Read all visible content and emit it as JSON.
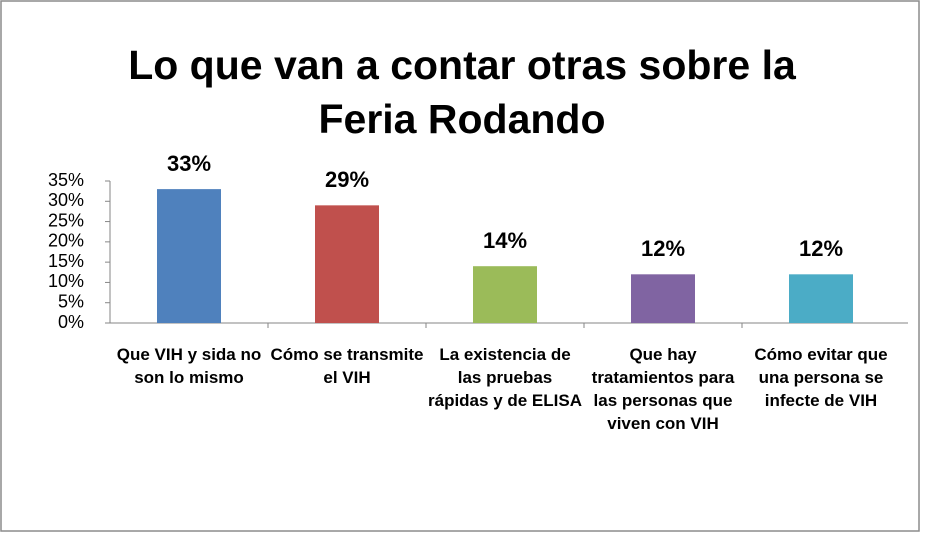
{
  "chart_data": {
    "type": "bar",
    "title": "Lo que van a contar otras sobre la Feria Rodando",
    "categories": [
      "Que VIH y sida no son lo mismo",
      "Cómo se transmite el VIH",
      "La existencia de las pruebas rápidas y de ELISA",
      "Que hay tratamientos para las personas que viven con VIH",
      "Cómo evitar que una persona se infecte de VIH"
    ],
    "values": [
      33,
      29,
      14,
      12,
      12
    ],
    "value_labels": [
      "33%",
      "29%",
      "14%",
      "12%",
      "12%"
    ],
    "colors": [
      "#4f81bd",
      "#c0504d",
      "#9bbb59",
      "#8064a2",
      "#4bacc6"
    ],
    "ylim": [
      0,
      35
    ],
    "yticks": [
      {
        "value": 0,
        "label": "0%"
      },
      {
        "value": 5,
        "label": "5%"
      },
      {
        "value": 10,
        "label": "10%"
      },
      {
        "value": 15,
        "label": "15%"
      },
      {
        "value": 20,
        "label": "20%"
      },
      {
        "value": 25,
        "label": "25%"
      },
      {
        "value": 30,
        "label": "30%"
      },
      {
        "value": 35,
        "label": "35%"
      }
    ]
  }
}
